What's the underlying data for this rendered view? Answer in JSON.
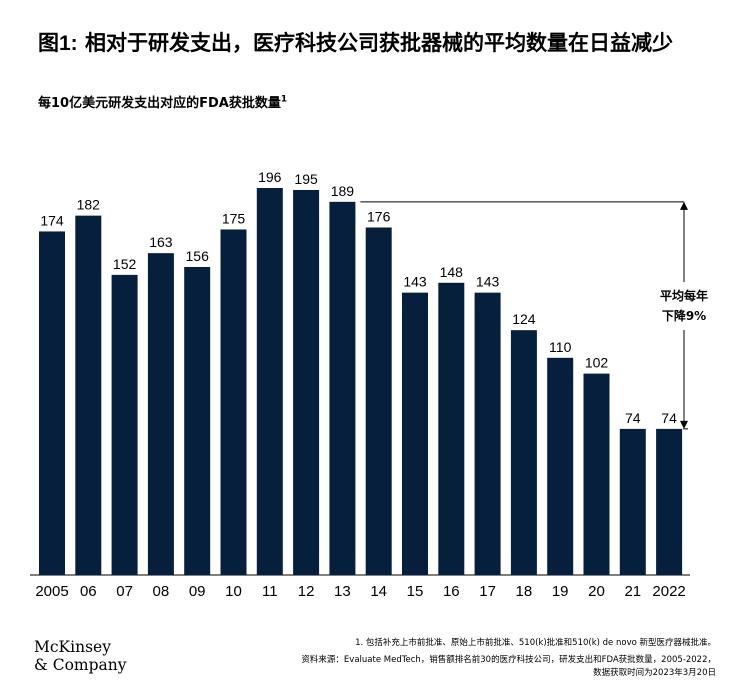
{
  "header": {
    "figure_label": "图1:",
    "title": "相对于研发支出，医疗科技公司获批器械的平均数量在日益减少",
    "subtitle": "每10亿美元研发支出对应的FDA获批数量",
    "subtitle_sup": "1"
  },
  "chart_data": {
    "type": "bar",
    "categories": [
      "2005",
      "06",
      "07",
      "08",
      "09",
      "10",
      "11",
      "12",
      "13",
      "14",
      "15",
      "16",
      "17",
      "18",
      "19",
      "20",
      "21",
      "2022"
    ],
    "values": [
      174,
      182,
      152,
      163,
      156,
      175,
      196,
      195,
      189,
      176,
      143,
      148,
      143,
      124,
      110,
      102,
      74,
      74
    ],
    "ylim": [
      0,
      196
    ],
    "grid": false,
    "annotation": {
      "line1": "平均每年",
      "line2": "下降9%",
      "from_category": "13",
      "from_value": 189,
      "to_value": 74
    }
  },
  "footer": {
    "footnote": "1.  包括补充上市前批准、原始上市前批准、510(k)批准和510(k) de novo 新型医疗器械批准。",
    "source_line1": "资料来源：Evaluate MedTech，销售额排名前30的医疗科技公司，研发支出和FDA获批数量，2005-2022，",
    "source_line2": "数据获取时间为2023年3月20日",
    "logo_line1": "McKinsey",
    "logo_line2": "& Company"
  }
}
